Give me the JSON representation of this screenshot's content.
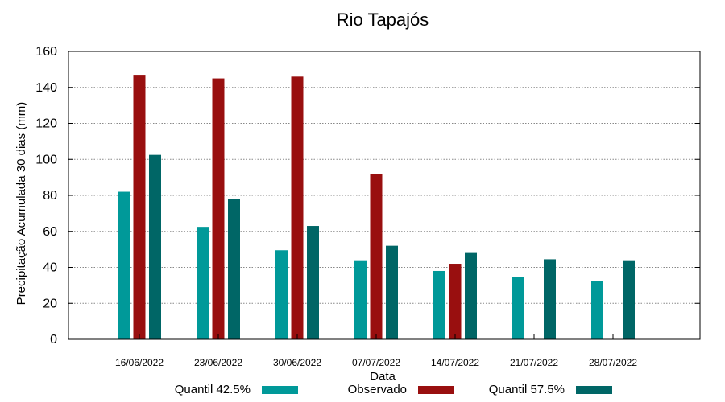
{
  "chart_data": {
    "type": "bar",
    "title": "Rio Tapajós",
    "xlabel": "Data",
    "ylabel": "Precipitação Acumulada 30 dias (mm)",
    "ylim": [
      0,
      160
    ],
    "yticks": [
      0,
      20,
      40,
      60,
      80,
      100,
      120,
      140,
      160
    ],
    "grid": true,
    "legend_position": "bottom",
    "categories": [
      "16/06/2022",
      "23/06/2022",
      "30/06/2022",
      "07/07/2022",
      "14/07/2022",
      "21/07/2022",
      "28/07/2022"
    ],
    "series": [
      {
        "name": "Quantil 42.5%",
        "color": "#009999",
        "values": [
          82,
          62.5,
          49.5,
          43.5,
          38,
          34.5,
          32.5
        ]
      },
      {
        "name": "Observado",
        "color": "#990f0f",
        "values": [
          147,
          145,
          146,
          92,
          42,
          null,
          null
        ]
      },
      {
        "name": "Quantil 57.5%",
        "color": "#006666",
        "values": [
          102.5,
          78,
          63,
          52,
          48,
          44.5,
          43.5
        ]
      }
    ]
  }
}
